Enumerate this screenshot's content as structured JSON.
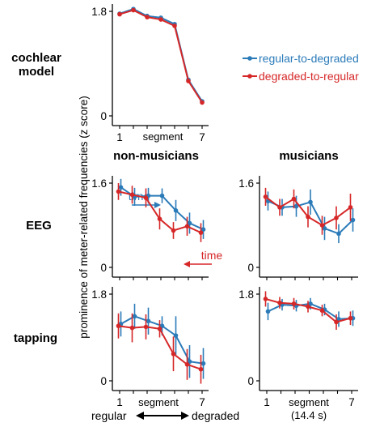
{
  "row_labels": {
    "cochlear_line1": "cochlear",
    "cochlear_line2": "model",
    "eeg": "EEG",
    "tapping": "tapping"
  },
  "col_titles": {
    "non_musicians": "non-musicians",
    "musicians": "musicians"
  },
  "y_axis_label": "prominence of meter-related frequencies (z score)",
  "legend": {
    "blue": "regular-to-degraded",
    "red": "degraded-to-regular"
  },
  "arrows": {
    "time_blue": "time",
    "time_red": "time"
  },
  "x_axis": {
    "tick_first": "1",
    "tick_last": "7",
    "label": "segment",
    "note": "(14.4 s)",
    "left": "regular",
    "right": "degraded"
  },
  "colors": {
    "blue": "#2b7bb9",
    "red": "#d62728",
    "axis": "#000000"
  },
  "chart_data": [
    {
      "type": "line",
      "panel": "cochlear model",
      "x": [
        1,
        2,
        3,
        4,
        5,
        6,
        7
      ],
      "ylim": [
        0,
        1.8
      ],
      "yticks": [
        "0",
        "1.8"
      ],
      "series": [
        {
          "name": "regular-to-degraded",
          "color": "#2b7bb9",
          "values": [
            1.76,
            1.84,
            1.72,
            1.69,
            1.58,
            0.62,
            0.25
          ]
        },
        {
          "name": "degraded-to-regular",
          "color": "#d62728",
          "values": [
            1.75,
            1.82,
            1.7,
            1.66,
            1.55,
            0.6,
            0.23
          ]
        }
      ]
    },
    {
      "type": "line",
      "panel": "EEG non-musicians",
      "x": [
        1,
        2,
        3,
        4,
        5,
        6,
        7
      ],
      "ylim": [
        0,
        1.6
      ],
      "yticks": [
        "0",
        "1.6"
      ],
      "series": [
        {
          "name": "regular-to-degraded",
          "color": "#2b7bb9",
          "values": [
            1.52,
            1.34,
            1.36,
            1.36,
            1.08,
            0.84,
            0.72
          ],
          "err": [
            0.16,
            0.17,
            0.15,
            0.14,
            0.2,
            0.2,
            0.18
          ]
        },
        {
          "name": "degraded-to-regular",
          "color": "#d62728",
          "values": [
            1.44,
            1.38,
            1.32,
            0.92,
            0.7,
            0.78,
            0.66
          ],
          "err": [
            0.16,
            0.17,
            0.18,
            0.2,
            0.16,
            0.18,
            0.18
          ]
        }
      ]
    },
    {
      "type": "line",
      "panel": "EEG musicians",
      "x": [
        1,
        2,
        3,
        4,
        5,
        6,
        7
      ],
      "ylim": [
        0,
        1.6
      ],
      "yticks": [
        "0",
        "1.6"
      ],
      "series": [
        {
          "name": "regular-to-degraded",
          "color": "#2b7bb9",
          "values": [
            1.26,
            1.14,
            1.16,
            1.24,
            0.74,
            0.64,
            0.9
          ],
          "err": [
            0.18,
            0.16,
            0.2,
            0.24,
            0.22,
            0.18,
            0.22
          ]
        },
        {
          "name": "degraded-to-regular",
          "color": "#d62728",
          "values": [
            1.34,
            1.14,
            1.3,
            0.96,
            0.8,
            0.94,
            1.14
          ],
          "err": [
            0.17,
            0.16,
            0.18,
            0.2,
            0.18,
            0.22,
            0.26
          ]
        }
      ]
    },
    {
      "type": "line",
      "panel": "tapping non-musicians",
      "x": [
        1,
        2,
        3,
        4,
        5,
        6,
        7
      ],
      "ylim": [
        0,
        1.8
      ],
      "yticks": [
        "0",
        "1.8"
      ],
      "series": [
        {
          "name": "regular-to-degraded",
          "color": "#2b7bb9",
          "values": [
            1.18,
            1.34,
            1.24,
            1.14,
            0.94,
            0.4,
            0.36
          ],
          "err": [
            0.26,
            0.26,
            0.28,
            0.2,
            0.4,
            0.34,
            0.32
          ]
        },
        {
          "name": "degraded-to-regular",
          "color": "#d62728",
          "values": [
            1.14,
            1.1,
            1.12,
            1.08,
            0.56,
            0.34,
            0.24
          ],
          "err": [
            0.26,
            0.3,
            0.26,
            0.18,
            0.36,
            0.32,
            0.3
          ]
        }
      ]
    },
    {
      "type": "line",
      "panel": "tapping musicians",
      "x": [
        1,
        2,
        3,
        4,
        5,
        6,
        7
      ],
      "ylim": [
        0,
        1.8
      ],
      "yticks": [
        "0",
        "1.8"
      ],
      "series": [
        {
          "name": "regular-to-degraded",
          "color": "#2b7bb9",
          "values": [
            1.44,
            1.58,
            1.56,
            1.6,
            1.48,
            1.28,
            1.3
          ],
          "err": [
            0.18,
            0.12,
            0.12,
            0.12,
            0.12,
            0.16,
            0.16
          ]
        },
        {
          "name": "degraded-to-regular",
          "color": "#d62728",
          "values": [
            1.7,
            1.62,
            1.6,
            1.54,
            1.46,
            1.22,
            1.3
          ],
          "err": [
            0.16,
            0.12,
            0.12,
            0.12,
            0.12,
            0.16,
            0.14
          ]
        }
      ]
    }
  ]
}
